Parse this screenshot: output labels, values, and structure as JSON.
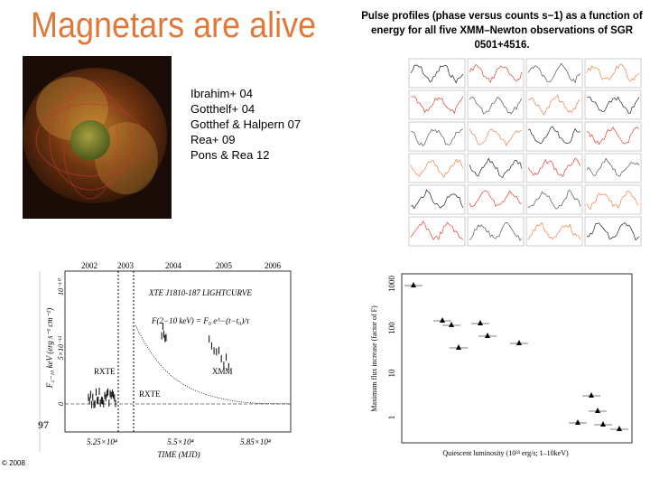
{
  "title": "Magnetars are alive",
  "caption": "Pulse profiles (phase versus counts s−1) as a function of energy for all five XMM–Newton observations of SGR 0501+4516.",
  "references": [
    "Ibrahim+ 04",
    "Gotthelf+ 04",
    "Gotthef & Halpern 07",
    "Rea+ 09",
    "Pons & Rea 12"
  ],
  "copyright": "© 2008",
  "lightcurve": {
    "years": [
      "2002",
      "2003",
      "2004",
      "2005",
      "2006"
    ],
    "title": "XTE J1810-187 LIGHTCURVE",
    "formula": "F(2−10 keV) = F₀ e^−(t−t₀)/τ",
    "labels": [
      "RXTE",
      "XMM",
      "RXTE"
    ],
    "yticks": [
      "10⁻¹⁰",
      "5×10⁻¹¹",
      "0"
    ],
    "ylabel": "F₂₋₁₀ keV (erg s⁻¹ cm⁻²)",
    "xticks": [
      "5.25×10⁴",
      "5.5×10⁴",
      "5.85×10⁴"
    ],
    "xlabel": "TIME (MJD)",
    "side_number": "97"
  },
  "flux_plot": {
    "ylabel": "Maximum flux increase (factor of F)",
    "xlabel": "Quiescent luminosity (10³³ erg/s; 1–10keV)",
    "yticks": [
      "1000",
      "100",
      "10",
      "1"
    ]
  }
}
